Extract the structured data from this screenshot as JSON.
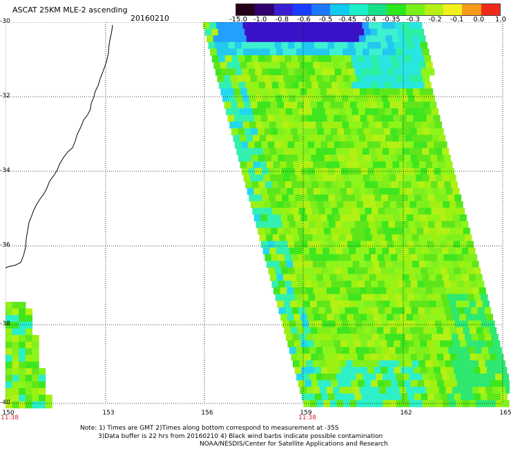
{
  "header": {
    "title": "ASCAT 25KM MLE-2 ascending",
    "date": "20160210"
  },
  "colorbar": {
    "labels": [
      "-15.0",
      "-1.0",
      "-0.8",
      "-0.6",
      "-0.5",
      "-0.45",
      "-0.4",
      "-0.35",
      "-0.3",
      "-0.2",
      "-0.1",
      "0.0",
      "1.0"
    ],
    "colors": [
      "#240018",
      "#32006e",
      "#3a1ed4",
      "#1a3cff",
      "#1b78ff",
      "#13c9f0",
      "#1cf0c8",
      "#16e08a",
      "#2ae81c",
      "#78f01a",
      "#b6f014",
      "#f2f01c",
      "#f59a1a",
      "#f02a1a"
    ]
  },
  "map": {
    "lat_labels": [
      "-30",
      "-32",
      "-34",
      "-36",
      "-38",
      "-40"
    ],
    "lon_labels": [
      "150",
      "153",
      "156",
      "159",
      "162",
      "165"
    ],
    "time_labels": [
      "11:38",
      "11:38"
    ],
    "lat_range": [
      -40,
      -30
    ],
    "lon_range": [
      150,
      165
    ],
    "grid": "dotted"
  },
  "notes": [
    "Note: 1) Times are GMT 2)Times along bottom correspond to measurement at -35S",
    "3)Data buffer is 22 hrs from 20160210 4) Black wind barbs indicate possible contamination",
    "NOAA/NESDIS/Center for Satellite Applications and Research"
  ]
}
